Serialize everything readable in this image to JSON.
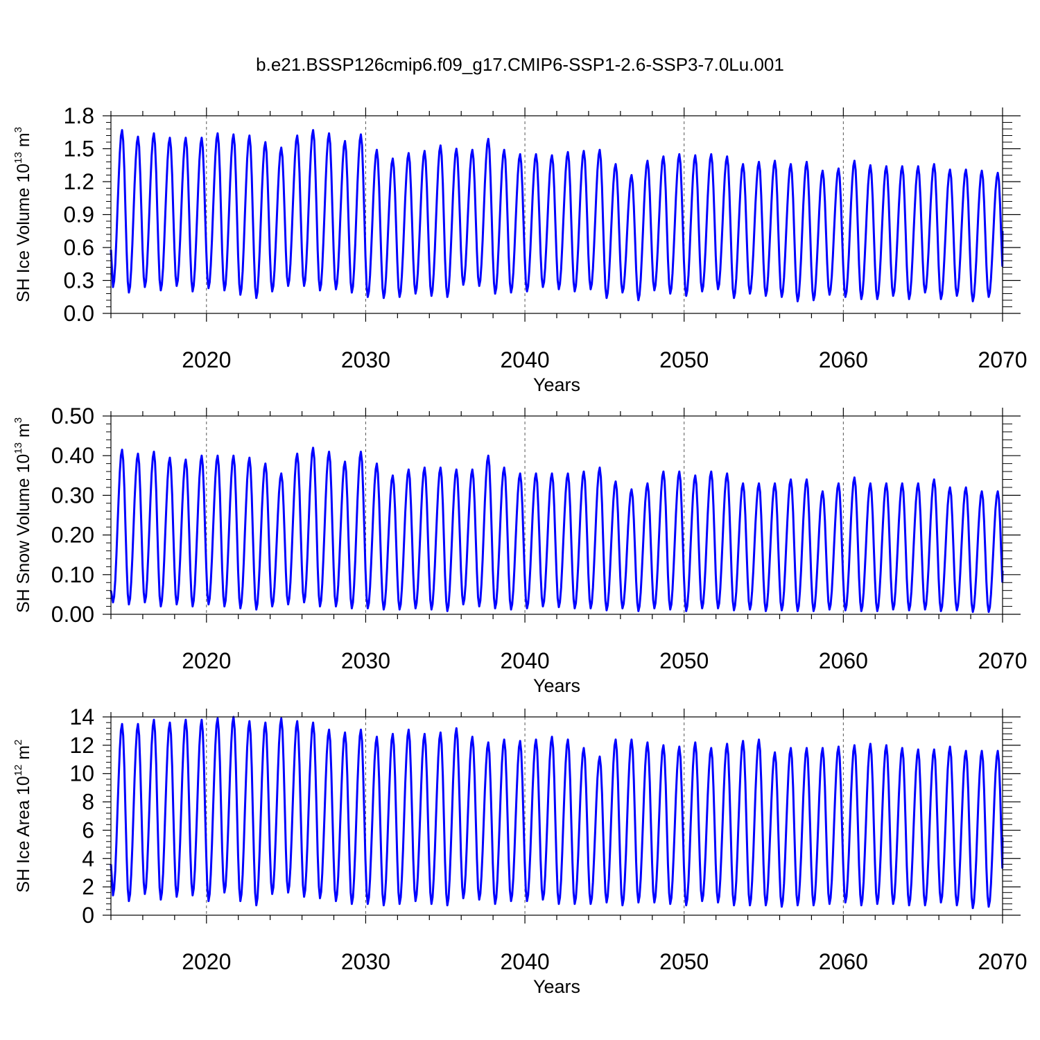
{
  "figure_title": "b.e21.BSSP126cmip6.f09_g17.CMIP6-SSP1-2.6-SSP3-7.0Lu.001",
  "line_color": "#0000ff",
  "chart_data": [
    {
      "type": "line",
      "series_name": "SH Ice Volume",
      "ylabel": {
        "text": "SH Ice Volume 10",
        "exp": "13",
        "unit": " m",
        "unit_exp": "3"
      },
      "xlabel": "Years",
      "xlim": [
        2014,
        2070
      ],
      "ylim": [
        0,
        1.8
      ],
      "yticks": [
        0.0,
        0.3,
        0.6,
        0.9,
        1.2,
        1.5,
        1.8
      ],
      "ytick_labels": [
        "0.0",
        "0.3",
        "0.6",
        "0.9",
        "1.2",
        "1.5",
        "1.8"
      ],
      "xticks": [
        2020,
        2030,
        2040,
        2050,
        2060,
        2070
      ],
      "xtick_labels": [
        "2020",
        "2030",
        "2040",
        "2050",
        "2060",
        "2070"
      ],
      "start_value": 0.58,
      "end_value": 0.75,
      "years": [
        2014,
        2015,
        2016,
        2017,
        2018,
        2019,
        2020,
        2021,
        2022,
        2023,
        2024,
        2025,
        2026,
        2027,
        2028,
        2029,
        2030,
        2031,
        2032,
        2033,
        2034,
        2035,
        2036,
        2037,
        2038,
        2039,
        2040,
        2041,
        2042,
        2043,
        2044,
        2045,
        2046,
        2047,
        2048,
        2049,
        2050,
        2051,
        2052,
        2053,
        2054,
        2055,
        2056,
        2057,
        2058,
        2059,
        2060,
        2061,
        2062,
        2063,
        2064,
        2065,
        2066,
        2067,
        2068,
        2069
      ],
      "annual_max": [
        1.67,
        1.61,
        1.64,
        1.6,
        1.6,
        1.6,
        1.64,
        1.63,
        1.62,
        1.56,
        1.51,
        1.62,
        1.67,
        1.64,
        1.57,
        1.63,
        1.49,
        1.41,
        1.46,
        1.48,
        1.53,
        1.5,
        1.49,
        1.59,
        1.49,
        1.45,
        1.45,
        1.44,
        1.47,
        1.48,
        1.49,
        1.36,
        1.26,
        1.39,
        1.43,
        1.45,
        1.44,
        1.45,
        1.43,
        1.36,
        1.38,
        1.39,
        1.36,
        1.38,
        1.3,
        1.32,
        1.39,
        1.35,
        1.34,
        1.34,
        1.34,
        1.36,
        1.31,
        1.31,
        1.3,
        1.28
      ],
      "annual_min": [
        0.24,
        0.19,
        0.24,
        0.21,
        0.25,
        0.2,
        0.23,
        0.21,
        0.17,
        0.14,
        0.2,
        0.25,
        0.25,
        0.21,
        0.22,
        0.19,
        0.15,
        0.14,
        0.15,
        0.18,
        0.16,
        0.15,
        0.26,
        0.25,
        0.18,
        0.19,
        0.2,
        0.24,
        0.22,
        0.2,
        0.22,
        0.14,
        0.19,
        0.12,
        0.21,
        0.18,
        0.16,
        0.2,
        0.22,
        0.14,
        0.18,
        0.16,
        0.15,
        0.11,
        0.12,
        0.17,
        0.15,
        0.13,
        0.13,
        0.16,
        0.13,
        0.19,
        0.13,
        0.16,
        0.11,
        0.15
      ]
    },
    {
      "type": "line",
      "series_name": "SH Snow Volume",
      "ylabel": {
        "text": "SH Snow Volume 10",
        "exp": "13",
        "unit": " m",
        "unit_exp": "3"
      },
      "xlabel": "Years",
      "xlim": [
        2014,
        2070
      ],
      "ylim": [
        0,
        0.5
      ],
      "yticks": [
        0.0,
        0.1,
        0.2,
        0.3,
        0.4,
        0.5
      ],
      "ytick_labels": [
        "0.00",
        "0.10",
        "0.20",
        "0.30",
        "0.40",
        "0.50"
      ],
      "xticks": [
        2020,
        2030,
        2040,
        2050,
        2060,
        2070
      ],
      "xtick_labels": [
        "2020",
        "2030",
        "2040",
        "2050",
        "2060",
        "2070"
      ],
      "start_value": 0.06,
      "end_value": 0.11,
      "years": [
        2014,
        2015,
        2016,
        2017,
        2018,
        2019,
        2020,
        2021,
        2022,
        2023,
        2024,
        2025,
        2026,
        2027,
        2028,
        2029,
        2030,
        2031,
        2032,
        2033,
        2034,
        2035,
        2036,
        2037,
        2038,
        2039,
        2040,
        2041,
        2042,
        2043,
        2044,
        2045,
        2046,
        2047,
        2048,
        2049,
        2050,
        2051,
        2052,
        2053,
        2054,
        2055,
        2056,
        2057,
        2058,
        2059,
        2060,
        2061,
        2062,
        2063,
        2064,
        2065,
        2066,
        2067,
        2068,
        2069
      ],
      "annual_max": [
        0.415,
        0.405,
        0.41,
        0.395,
        0.39,
        0.4,
        0.4,
        0.4,
        0.395,
        0.38,
        0.355,
        0.405,
        0.42,
        0.41,
        0.385,
        0.41,
        0.38,
        0.35,
        0.365,
        0.37,
        0.37,
        0.365,
        0.365,
        0.4,
        0.37,
        0.355,
        0.355,
        0.355,
        0.355,
        0.36,
        0.37,
        0.335,
        0.315,
        0.33,
        0.36,
        0.36,
        0.35,
        0.36,
        0.355,
        0.33,
        0.33,
        0.33,
        0.34,
        0.34,
        0.31,
        0.33,
        0.345,
        0.33,
        0.33,
        0.33,
        0.33,
        0.34,
        0.32,
        0.32,
        0.31,
        0.31
      ],
      "annual_min": [
        0.03,
        0.025,
        0.03,
        0.02,
        0.025,
        0.02,
        0.025,
        0.02,
        0.015,
        0.012,
        0.02,
        0.025,
        0.03,
        0.02,
        0.02,
        0.015,
        0.015,
        0.012,
        0.012,
        0.015,
        0.012,
        0.008,
        0.025,
        0.02,
        0.015,
        0.012,
        0.015,
        0.02,
        0.018,
        0.015,
        0.015,
        0.01,
        0.015,
        0.008,
        0.015,
        0.012,
        0.008,
        0.015,
        0.015,
        0.01,
        0.012,
        0.008,
        0.01,
        0.008,
        0.008,
        0.012,
        0.01,
        0.008,
        0.008,
        0.012,
        0.01,
        0.012,
        0.008,
        0.01,
        0.006,
        0.006
      ]
    },
    {
      "type": "line",
      "series_name": "SH Ice Area",
      "ylabel": {
        "text": "SH Ice Area 10",
        "exp": "12",
        "unit": " m",
        "unit_exp": "2"
      },
      "xlabel": "Years",
      "xlim": [
        2014,
        2070
      ],
      "ylim": [
        0,
        14
      ],
      "yticks": [
        0,
        2,
        4,
        6,
        8,
        10,
        12,
        14
      ],
      "ytick_labels": [
        "0",
        "2",
        "4",
        "6",
        "8",
        "10",
        "12",
        "14"
      ],
      "xticks": [
        2020,
        2030,
        2040,
        2050,
        2060,
        2070
      ],
      "xtick_labels": [
        "2020",
        "2030",
        "2040",
        "2050",
        "2060",
        "2070"
      ],
      "start_value": 3.6,
      "end_value": 5.5,
      "years": [
        2014,
        2015,
        2016,
        2017,
        2018,
        2019,
        2020,
        2021,
        2022,
        2023,
        2024,
        2025,
        2026,
        2027,
        2028,
        2029,
        2030,
        2031,
        2032,
        2033,
        2034,
        2035,
        2036,
        2037,
        2038,
        2039,
        2040,
        2041,
        2042,
        2043,
        2044,
        2045,
        2046,
        2047,
        2048,
        2049,
        2050,
        2051,
        2052,
        2053,
        2054,
        2055,
        2056,
        2057,
        2058,
        2059,
        2060,
        2061,
        2062,
        2063,
        2064,
        2065,
        2066,
        2067,
        2068,
        2069
      ],
      "annual_max": [
        13.5,
        13.5,
        13.8,
        13.6,
        13.8,
        13.8,
        13.9,
        14.0,
        13.7,
        13.6,
        13.9,
        13.7,
        13.6,
        13.1,
        12.9,
        13.1,
        12.6,
        12.8,
        13.1,
        12.8,
        12.9,
        13.2,
        12.6,
        12.2,
        12.4,
        12.3,
        12.4,
        12.6,
        12.4,
        11.8,
        11.2,
        12.4,
        12.4,
        12.2,
        12.0,
        11.9,
        12.2,
        11.8,
        12.1,
        12.3,
        12.4,
        11.5,
        11.8,
        11.8,
        11.8,
        11.9,
        12.0,
        12.1,
        12.0,
        11.8,
        11.7,
        11.7,
        11.9,
        11.6,
        11.6,
        11.6
      ],
      "annual_min": [
        1.4,
        1.0,
        1.5,
        1.1,
        1.3,
        1.4,
        1.0,
        1.6,
        1.0,
        0.7,
        1.5,
        1.6,
        1.3,
        1.2,
        1.0,
        0.8,
        0.8,
        0.7,
        0.8,
        1.0,
        0.8,
        0.7,
        1.2,
        1.1,
        0.8,
        1.0,
        1.0,
        1.1,
        0.8,
        0.8,
        0.8,
        0.9,
        0.7,
        0.9,
        0.9,
        0.8,
        0.7,
        1.0,
        0.9,
        0.7,
        0.7,
        0.7,
        0.6,
        0.7,
        0.7,
        0.8,
        0.9,
        0.7,
        0.8,
        0.8,
        0.7,
        0.7,
        0.9,
        0.7,
        0.5,
        0.6
      ]
    }
  ]
}
